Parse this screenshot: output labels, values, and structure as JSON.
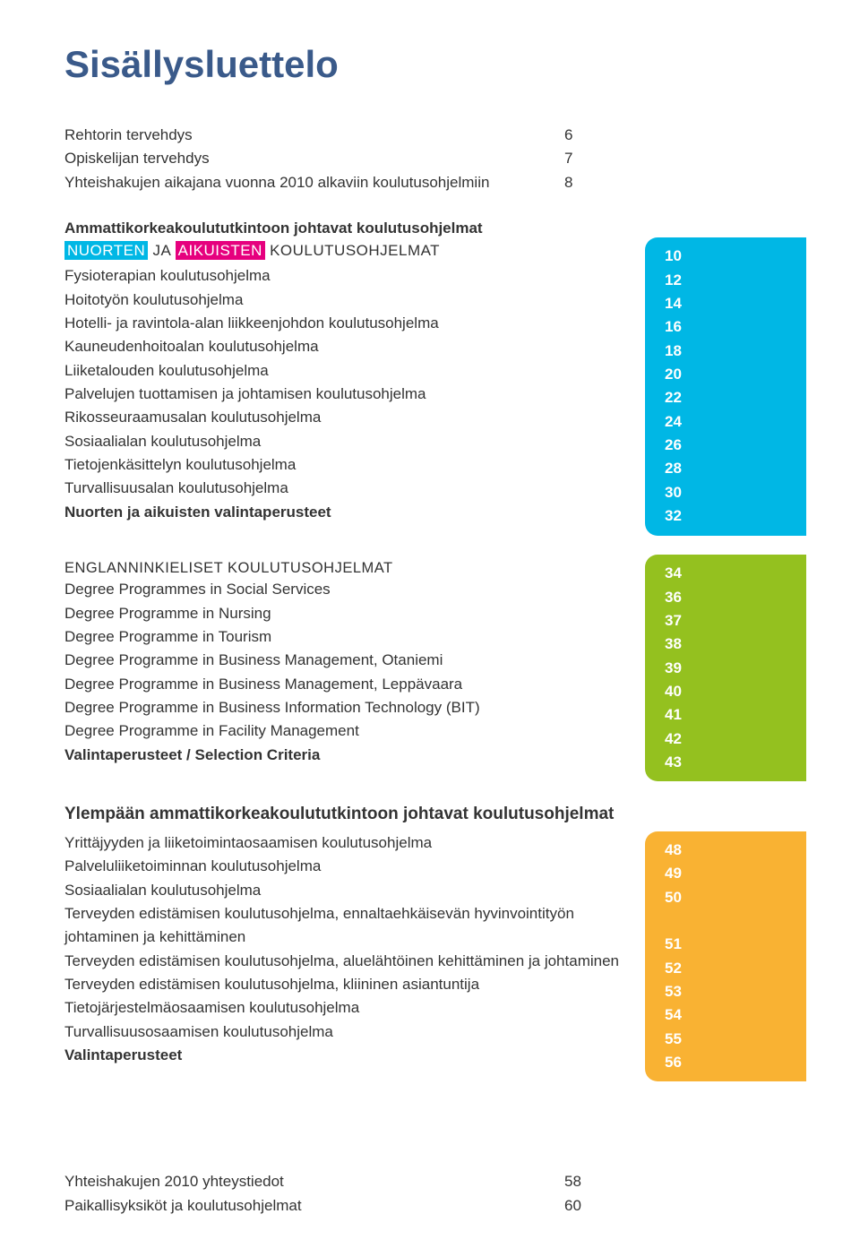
{
  "title": "Sisällysluettelo",
  "title_color": "#3a5a8a",
  "intro": [
    {
      "label": "Rehtorin tervehdys",
      "page": "6"
    },
    {
      "label": "Opiskelijan tervehdys",
      "page": "7"
    },
    {
      "label": "Yhteishakujen aikajana  vuonna 2010 alkaviin koulutusohjelmiin",
      "page": "8"
    }
  ],
  "section1": {
    "header": "Ammattikorkeakoulututkintoon johtavat koulutusohjelmat",
    "sub_parts": [
      {
        "text": "NUORTEN",
        "class": "hl-cyan"
      },
      {
        "text": " JA ",
        "class": ""
      },
      {
        "text": "AIKUISTEN",
        "class": "hl-magenta"
      },
      {
        "text": " KOULUTUSOHJELMAT",
        "class": ""
      }
    ],
    "rows": [
      {
        "label": "Fysioterapian koulutusohjelma",
        "page": "12",
        "bold": false
      },
      {
        "label": "Hoitotyön koulutusohjelma",
        "page": "14",
        "bold": false
      },
      {
        "label": "Hotelli- ja ravintola-alan liikkeenjohdon koulutusohjelma",
        "page": "16",
        "bold": false
      },
      {
        "label": "Kauneudenhoitoalan koulutusohjelma",
        "page": "18",
        "bold": false
      },
      {
        "label": "Liiketalouden koulutusohjelma",
        "page": "20",
        "bold": false
      },
      {
        "label": "Palvelujen tuottamisen ja johtamisen koulutusohjelma",
        "page": "22",
        "bold": false
      },
      {
        "label": "Rikosseuraamusalan koulutusohjelma",
        "page": "24",
        "bold": false
      },
      {
        "label": "Sosiaalialan koulutusohjelma",
        "page": "26",
        "bold": false
      },
      {
        "label": "Tietojenkäsittelyn koulutusohjelma",
        "page": "28",
        "bold": false
      },
      {
        "label": "Turvallisuusalan koulutusohjelma",
        "page": "30",
        "bold": false
      },
      {
        "label": "Nuorten ja aikuisten valintaperusteet",
        "page": "32",
        "bold": true
      }
    ],
    "badge_bg_outer": "#e6007e",
    "badge_bg_inner": "#00b7e5",
    "badge_header_page": "10"
  },
  "section2": {
    "header": "ENGLANNINKIELISET KOULUTUSOHJELMAT",
    "rows": [
      {
        "label": "Degree Programmes in Social Services",
        "page": "36",
        "bold": false
      },
      {
        "label": "Degree Programme in Nursing",
        "page": "37",
        "bold": false
      },
      {
        "label": "Degree Programme in Tourism",
        "page": "38",
        "bold": false
      },
      {
        "label": "Degree Programme in Business Management, Otaniemi",
        "page": "39",
        "bold": false
      },
      {
        "label": "Degree Programme in Business Management, Leppävaara",
        "page": "40",
        "bold": false
      },
      {
        "label": "Degree Programme in Business Information Technology (BIT)",
        "page": "41",
        "bold": false
      },
      {
        "label": "Degree Programme in Facility Management",
        "page": "42",
        "bold": false
      },
      {
        "label": "Valintaperusteet / Selection Criteria",
        "page": "43",
        "bold": true
      }
    ],
    "badge_bg": "#94c11f",
    "badge_header_page": "34"
  },
  "section3": {
    "header": "Ylempään ammattikorkeakoulututkintoon johtavat koulutusohjelmat",
    "rows": [
      {
        "label": "Yrittäjyyden ja liiketoimintaosaamisen koulutusohjelma",
        "page": "48",
        "bold": false
      },
      {
        "label": "Palveluliiketoiminnan koulutusohjelma",
        "page": "49",
        "bold": false
      },
      {
        "label": "Sosiaalialan koulutusohjelma",
        "page": "50",
        "bold": false
      },
      {
        "label": "Terveyden edistämisen koulutusohjelma, ennaltaehkäisevän hyvinvointityön",
        "page": "",
        "bold": false
      },
      {
        "label": "johtaminen ja kehittäminen",
        "page": "51",
        "bold": false
      },
      {
        "label": "Terveyden edistämisen koulutusohjelma, aluelähtöinen kehittäminen ja johtaminen",
        "page": "52",
        "bold": false
      },
      {
        "label": "Terveyden edistämisen koulutusohjelma, kliininen asiantuntija",
        "page": "53",
        "bold": false
      },
      {
        "label": "Tietojärjestelmäosaamisen koulutusohjelma",
        "page": "54",
        "bold": false
      },
      {
        "label": "Turvallisuusosaamisen koulutusohjelma",
        "page": "55",
        "bold": false
      },
      {
        "label": "Valintaperusteet",
        "page": "56",
        "bold": true
      }
    ],
    "badge_bg": "#f9b233"
  },
  "footer": [
    {
      "label": "Yhteishakujen 2010 yhteystiedot",
      "page": "58"
    },
    {
      "label": "Paikallisyksiköt ja koulutusohjelmat",
      "page": "60"
    }
  ],
  "colors": {
    "text": "#333333",
    "white": "#ffffff"
  }
}
